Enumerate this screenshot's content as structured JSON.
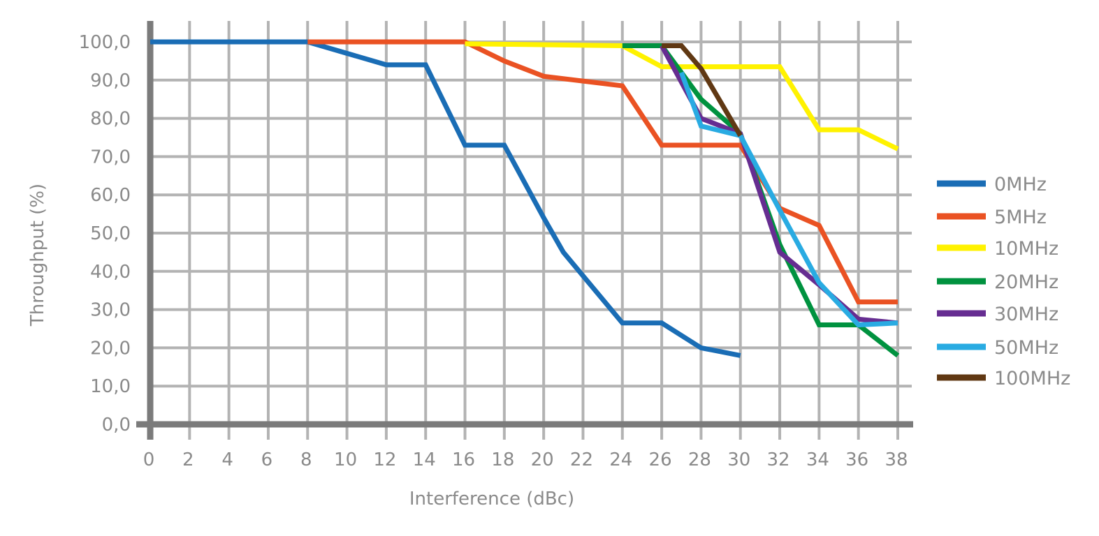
{
  "chart_data": {
    "type": "line",
    "title": "",
    "xlabel": "Interference (dBc)",
    "ylabel": "Throughput (%)",
    "xlim": [
      0,
      38
    ],
    "ylim": [
      0,
      100
    ],
    "x_ticks": [
      "0",
      "2",
      "4",
      "6",
      "8",
      "10",
      "12",
      "14",
      "16",
      "18",
      "20",
      "22",
      "24",
      "26",
      "28",
      "30",
      "32",
      "34",
      "36",
      "38"
    ],
    "y_ticks": [
      "0,0",
      "10,0",
      "20,0",
      "30,0",
      "40,0",
      "50,0",
      "60,0",
      "70,0",
      "80,0",
      "90,0",
      "100,0"
    ],
    "grid": true,
    "legend_position": "right",
    "series": [
      {
        "name": "0MHz",
        "color": "#1a6db5",
        "points": [
          [
            0,
            100
          ],
          [
            8,
            100
          ],
          [
            12,
            94
          ],
          [
            14,
            94
          ],
          [
            16,
            73
          ],
          [
            18,
            73
          ],
          [
            20,
            54
          ],
          [
            21,
            45
          ],
          [
            24,
            26.5
          ],
          [
            26,
            26.5
          ],
          [
            28,
            20
          ],
          [
            30,
            18
          ]
        ]
      },
      {
        "name": "5MHz",
        "color": "#ea5223",
        "points": [
          [
            8,
            100
          ],
          [
            16,
            100
          ],
          [
            18,
            95
          ],
          [
            20,
            91
          ],
          [
            24,
            88.5
          ],
          [
            26,
            73
          ],
          [
            28,
            73
          ],
          [
            30,
            73
          ],
          [
            32,
            56.5
          ],
          [
            34,
            52
          ],
          [
            36,
            32
          ],
          [
            38,
            32
          ]
        ]
      },
      {
        "name": "10MHz",
        "color": "#fff200",
        "points": [
          [
            16,
            99.5
          ],
          [
            24,
            99
          ],
          [
            26,
            93.5
          ],
          [
            28,
            93.5
          ],
          [
            30,
            93.5
          ],
          [
            32,
            93.5
          ],
          [
            34,
            77
          ],
          [
            36,
            77
          ],
          [
            38,
            72
          ]
        ]
      },
      {
        "name": "20MHz",
        "color": "#00923f",
        "points": [
          [
            24,
            99
          ],
          [
            26,
            99
          ],
          [
            28,
            85
          ],
          [
            30,
            76
          ],
          [
            32,
            47
          ],
          [
            34,
            26
          ],
          [
            36,
            26
          ],
          [
            38,
            18
          ]
        ]
      },
      {
        "name": "30MHz",
        "color": "#662d91",
        "points": [
          [
            26,
            99
          ],
          [
            28,
            80
          ],
          [
            30,
            76
          ],
          [
            32,
            45
          ],
          [
            34,
            36.5
          ],
          [
            36,
            27.5
          ],
          [
            38,
            26.5
          ]
        ]
      },
      {
        "name": "50MHz",
        "color": "#29abe2",
        "points": [
          [
            27,
            92
          ],
          [
            28,
            78
          ],
          [
            30,
            75.5
          ],
          [
            32,
            56
          ],
          [
            34,
            37
          ],
          [
            36,
            26
          ],
          [
            38,
            26.5
          ]
        ]
      },
      {
        "name": "100MHz",
        "color": "#603813",
        "points": [
          [
            26,
            99
          ],
          [
            27,
            99
          ],
          [
            28,
            93
          ],
          [
            30,
            75.5
          ]
        ]
      }
    ]
  }
}
